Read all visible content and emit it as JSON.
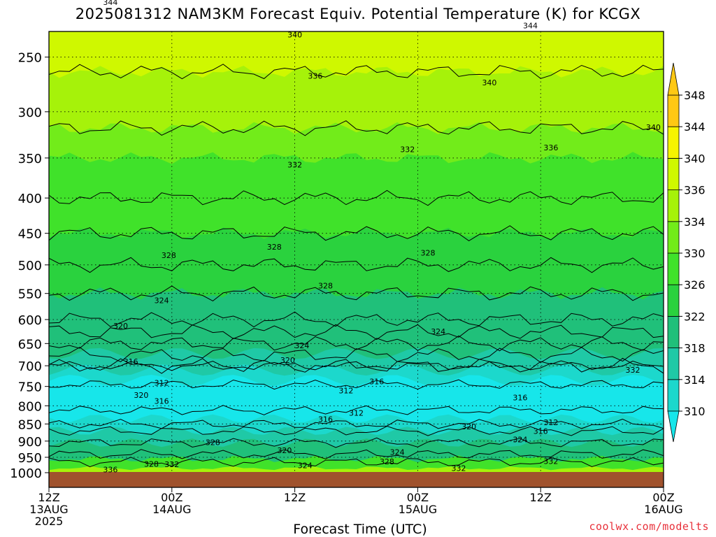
{
  "title": "2025081312 NAM3KM Forecast Equiv. Potential Temperature (K) for KCGX",
  "credit": "coolwx.com/modelts",
  "colors": {
    "fill_bands": [
      "#17e6ea",
      "#1cd8cc",
      "#1fc9a6",
      "#20c07a",
      "#2ad23e",
      "#40e22a",
      "#72ec1a",
      "#a6f20a",
      "#cff800",
      "#f6f400",
      "#ffc814"
    ],
    "ground": "#a0522d",
    "contour": "#000000",
    "credit": "#e8303a"
  },
  "chart_data": {
    "type": "heatmap",
    "title": "2025081312 NAM3KM Forecast Equiv. Potential Temperature (K) for KCGX",
    "xlabel": "Forecast Time (UTC)",
    "ylabel": "",
    "x_ticks": [
      {
        "lines": [
          "12Z",
          "13AUG",
          "2025"
        ],
        "hour": 0
      },
      {
        "lines": [
          "00Z",
          "14AUG"
        ],
        "hour": 12
      },
      {
        "lines": [
          "12Z"
        ],
        "hour": 24
      },
      {
        "lines": [
          "00Z",
          "15AUG"
        ],
        "hour": 36
      },
      {
        "lines": [
          "12Z"
        ],
        "hour": 48
      },
      {
        "lines": [
          "00Z",
          "16AUG"
        ],
        "hour": 60
      }
    ],
    "x_range_hours": [
      0,
      60
    ],
    "y_axis": "pressure (hPa), log scale, inverted",
    "y_range": [
      1000,
      200
    ],
    "y_ticks": [
      250,
      300,
      350,
      400,
      450,
      500,
      550,
      600,
      650,
      700,
      750,
      800,
      850,
      900,
      950,
      1000
    ],
    "grid": true,
    "colorbar": {
      "position": "right",
      "levels": [
        310,
        314,
        318,
        322,
        326,
        330,
        334,
        336,
        340,
        344,
        348
      ],
      "extend": "both"
    },
    "profile_hPa_to_K": [
      [
        200,
        345
      ],
      [
        250,
        341
      ],
      [
        300,
        337
      ],
      [
        350,
        334
      ],
      [
        400,
        332
      ],
      [
        450,
        330
      ],
      [
        500,
        328
      ],
      [
        550,
        326
      ],
      [
        600,
        324
      ],
      [
        650,
        320
      ],
      [
        700,
        316
      ],
      [
        750,
        312
      ],
      [
        800,
        312
      ],
      [
        850,
        316
      ],
      [
        900,
        322
      ],
      [
        950,
        328
      ],
      [
        1000,
        334
      ]
    ],
    "contour_labels": [
      {
        "text": "344",
        "hour": 6,
        "p": 208
      },
      {
        "text": "340",
        "hour": 24,
        "p": 232
      },
      {
        "text": "344",
        "hour": 47,
        "p": 225
      },
      {
        "text": "336",
        "hour": 26,
        "p": 266
      },
      {
        "text": "340",
        "hour": 43,
        "p": 272
      },
      {
        "text": "340",
        "hour": 59,
        "p": 316
      },
      {
        "text": "336",
        "hour": 49,
        "p": 338
      },
      {
        "text": "332",
        "hour": 35,
        "p": 340
      },
      {
        "text": "332",
        "hour": 24,
        "p": 358
      },
      {
        "text": "328",
        "hour": 11.7,
        "p": 484
      },
      {
        "text": "328",
        "hour": 22,
        "p": 471
      },
      {
        "text": "328",
        "hour": 37,
        "p": 480
      },
      {
        "text": "328",
        "hour": 27,
        "p": 536
      },
      {
        "text": "324",
        "hour": 11,
        "p": 563
      },
      {
        "text": "324",
        "hour": 38,
        "p": 624
      },
      {
        "text": "324",
        "hour": 24.7,
        "p": 654
      },
      {
        "text": "320",
        "hour": 7,
        "p": 613
      },
      {
        "text": "320",
        "hour": 23.3,
        "p": 687
      },
      {
        "text": "316",
        "hour": 8,
        "p": 690
      },
      {
        "text": "316",
        "hour": 32,
        "p": 738
      },
      {
        "text": "316",
        "hour": 46,
        "p": 778
      },
      {
        "text": "316",
        "hour": 27,
        "p": 837
      },
      {
        "text": "316",
        "hour": 11,
        "p": 787
      },
      {
        "text": "316",
        "hour": 48,
        "p": 870
      },
      {
        "text": "332",
        "hour": 57,
        "p": 710
      },
      {
        "text": "312",
        "hour": 11,
        "p": 741
      },
      {
        "text": "312",
        "hour": 29,
        "p": 760
      },
      {
        "text": "312",
        "hour": 30,
        "p": 819
      },
      {
        "text": "312",
        "hour": 49,
        "p": 845
      },
      {
        "text": "320",
        "hour": 9,
        "p": 772
      },
      {
        "text": "320",
        "hour": 41,
        "p": 857
      },
      {
        "text": "320",
        "hour": 23,
        "p": 928
      },
      {
        "text": "324",
        "hour": 46,
        "p": 895
      },
      {
        "text": "324",
        "hour": 34,
        "p": 933
      },
      {
        "text": "324",
        "hour": 25,
        "p": 976
      },
      {
        "text": "328",
        "hour": 16,
        "p": 903
      },
      {
        "text": "328",
        "hour": 33,
        "p": 963
      },
      {
        "text": "328",
        "hour": 10,
        "p": 971
      },
      {
        "text": "332",
        "hour": 12,
        "p": 972
      },
      {
        "text": "332",
        "hour": 49,
        "p": 962
      },
      {
        "text": "332",
        "hour": 40,
        "p": 985
      },
      {
        "text": "336",
        "hour": 6,
        "p": 990
      }
    ]
  }
}
